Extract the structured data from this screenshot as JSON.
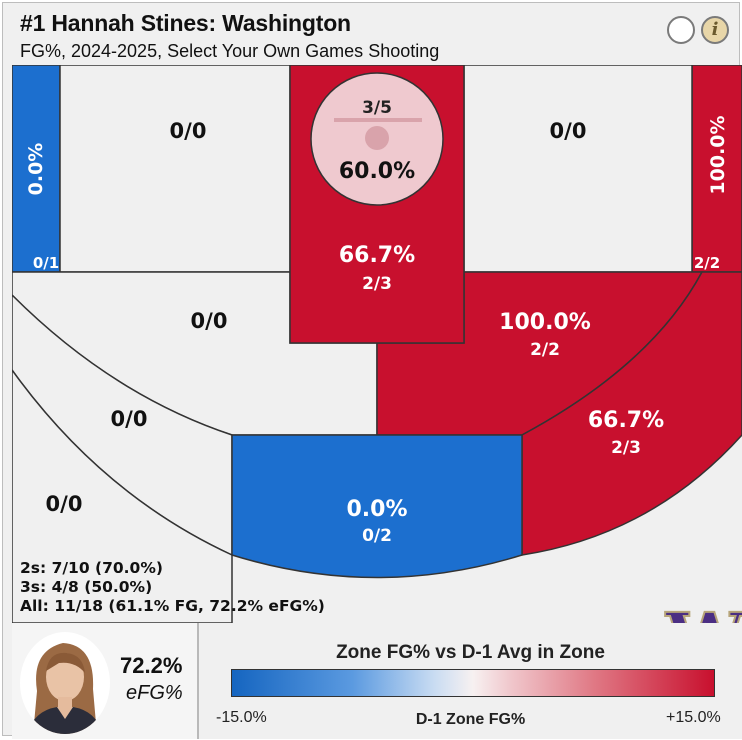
{
  "header": {
    "title": "#1 Hannah Stines: Washington",
    "subtitle": "FG%, 2024-2025, Select Your Own Games Shooting",
    "toggle_icon": "circle-toggle-icon",
    "info_icon": "info-icon",
    "info_glyph": "i"
  },
  "colors": {
    "above_avg": "#c8102e",
    "below_avg": "#1c6fcf",
    "no_data": "#f0f0f0",
    "court_lines": "#333333",
    "rim_circle": "#efc9cf"
  },
  "chart_data": {
    "type": "heatmap",
    "title": "Zone FG% vs D-1 Avg in Zone",
    "zones": [
      {
        "zone": "left-corner-three",
        "fg_pct": "0.0%",
        "made_attempts": "0/1",
        "made": 0,
        "attempts": 1
      },
      {
        "zone": "left-wing-long-two",
        "fg": "0/0",
        "made": 0,
        "attempts": 0
      },
      {
        "zone": "rim",
        "fg_pct": "60.0%",
        "made_attempts": "3/5",
        "made": 3,
        "attempts": 5
      },
      {
        "zone": "paint",
        "fg_pct": "66.7%",
        "made_attempts": "2/3",
        "made": 2,
        "attempts": 3
      },
      {
        "zone": "right-wing-long-two",
        "fg": "0/0",
        "made": 0,
        "attempts": 0
      },
      {
        "zone": "right-corner-three",
        "fg_pct": "100.0%",
        "made_attempts": "2/2",
        "made": 2,
        "attempts": 2
      },
      {
        "zone": "left-elbow-two",
        "fg": "0/0",
        "made": 0,
        "attempts": 0
      },
      {
        "zone": "right-elbow-two",
        "fg_pct": "100.0%",
        "made_attempts": "2/2",
        "made": 2,
        "attempts": 2
      },
      {
        "zone": "left-wing-three",
        "fg": "0/0",
        "made": 0,
        "attempts": 0
      },
      {
        "zone": "right-wing-three",
        "fg_pct": "66.7%",
        "made_attempts": "2/3",
        "made": 2,
        "attempts": 3
      },
      {
        "zone": "left-deep-three",
        "fg": "0/0",
        "made": 0,
        "attempts": 0
      },
      {
        "zone": "top-of-key-three",
        "fg_pct": "0.0%",
        "made_attempts": "0/2",
        "made": 0,
        "attempts": 2
      }
    ],
    "legend": {
      "min_label": "-15.0%",
      "mid_label": "D-1 Zone FG%",
      "max_label": "+15.0%"
    }
  },
  "totals": {
    "twos": "2s: 7/10 (70.0%)",
    "threes": "3s: 4/8 (50.0%)",
    "all": "All: 11/18 (61.1% FG, 72.2% eFG%)"
  },
  "team_logo": {
    "icon": "washington-w-logo",
    "letter": "W"
  },
  "player": {
    "headshot_icon": "player-headshot",
    "efg_value": "72.2%",
    "efg_label": "eFG%"
  }
}
